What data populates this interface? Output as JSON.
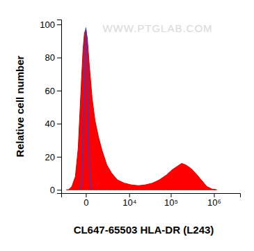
{
  "chart_data": {
    "type": "area",
    "annotation": "WWW.PTGLAB.COM",
    "x_label": "CL647-65503 HLA-DR (L243)",
    "y_label": "Relative cell number",
    "log": "x",
    "xlim": [
      -3000,
      4000000
    ],
    "xticks": [
      0,
      {
        "value": 10000,
        "label": "10⁴"
      },
      {
        "value": 100000,
        "label": "10⁵"
      },
      {
        "value": 1000000,
        "label": "10⁶"
      }
    ],
    "ylim": [
      -2,
      103
    ],
    "yticks": [
      0,
      20,
      40,
      60,
      80,
      100
    ],
    "series": [
      {
        "type": "area",
        "color": "#ff0000",
        "x": [
          -2020,
          -1700,
          -1225,
          -830,
          -560,
          -330,
          -180,
          -85,
          0,
          85,
          225,
          440,
          690,
          1055,
          1500,
          2275,
          3280,
          4800,
          7460,
          11300,
          16900,
          25000,
          36700,
          53800,
          79500,
          106000,
          137800,
          179000,
          223000,
          291000,
          376000,
          507000,
          684000,
          888000,
          1152000
        ],
        "values": [
          0,
          0,
          2,
          8,
          25,
          60,
          85,
          95,
          97,
          92,
          75,
          55,
          42,
          32,
          24,
          15,
          10,
          6,
          4,
          3,
          2.5,
          3,
          4,
          6,
          9,
          12,
          14,
          16,
          15,
          13,
          10,
          6,
          2,
          0.5,
          0
        ]
      },
      {
        "type": "line",
        "color": "#3a3acc",
        "x": [
          -400,
          -250,
          -150,
          -80,
          0,
          80,
          150,
          250,
          400
        ],
        "values": [
          0,
          8,
          40,
          80,
          98,
          80,
          40,
          8,
          0
        ]
      }
    ]
  }
}
